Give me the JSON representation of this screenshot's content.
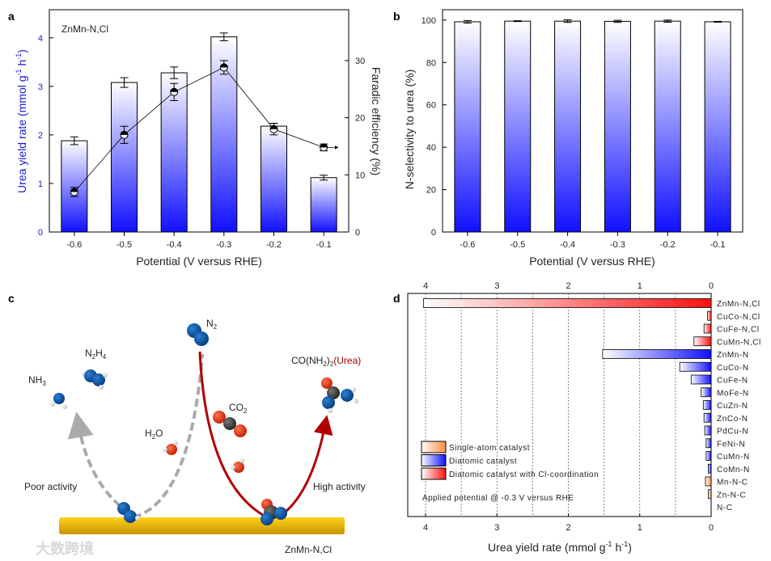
{
  "panel_labels": {
    "a": "a",
    "b": "b",
    "c": "c",
    "d": "d"
  },
  "colors": {
    "blue": "#1010ff",
    "red": "#ff1010",
    "orange": "#ff8a40",
    "axis_left": "#1a1ad0",
    "arrow_red": "#b00000",
    "arrow_grey": "#aaaaaa",
    "substrate": "#e6b800"
  },
  "chart_data": [
    {
      "type": "bar",
      "panel": "a",
      "annotation": "ZnMn-N,Cl",
      "categories": [
        "-0.6",
        "-0.5",
        "-0.4",
        "-0.3",
        "-0.2",
        "-0.1"
      ],
      "xlabel": "Potential (V versus RHE)",
      "ylabel": "Urea yield rate (mmol g-1 h-1)",
      "ylabel_parts": {
        "main": "Urea yield rate ",
        "paren": "(mmol g",
        "sup1": "-1",
        "h": " h",
        "sup2": "-1",
        "close": ")"
      },
      "y2label": "Faradic efficiency (%)",
      "ylim": [
        0,
        4.58
      ],
      "yticks": [
        0,
        1,
        2,
        3,
        4
      ],
      "y2lim": [
        0,
        38.9
      ],
      "y2ticks": [
        0,
        10,
        20,
        30
      ],
      "series": [
        {
          "name": "Urea yield rate",
          "type": "bar",
          "axis": "left",
          "values": [
            1.88,
            3.08,
            3.28,
            4.02,
            2.18,
            1.12
          ],
          "errors": [
            0.08,
            0.1,
            0.12,
            0.08,
            0.06,
            0.05
          ]
        },
        {
          "name": "Faradic efficiency",
          "type": "line",
          "axis": "right",
          "values": [
            7.0,
            17.0,
            24.5,
            28.8,
            18.0,
            14.8
          ],
          "errors": [
            0.8,
            1.5,
            1.5,
            1.2,
            1.0,
            0.6
          ]
        }
      ]
    },
    {
      "type": "bar",
      "panel": "b",
      "categories": [
        "-0.6",
        "-0.5",
        "-0.4",
        "-0.3",
        "-0.2",
        "-0.1"
      ],
      "xlabel": "Potential (V versus RHE)",
      "ylabel": "N-selectivity to urea (%)",
      "ylim": [
        0,
        104.9
      ],
      "yticks": [
        0,
        20,
        40,
        60,
        80,
        100
      ],
      "values": [
        99.2,
        99.5,
        99.5,
        99.4,
        99.5,
        99.2
      ],
      "errors": [
        0.6,
        0.2,
        0.6,
        0.5,
        0.5,
        0.2
      ]
    },
    {
      "type": "bar",
      "orientation": "horizontal",
      "panel": "d",
      "xlabel": "Urea yield rate (mmol g-1 h-1)",
      "xlabel_parts": {
        "main": "Urea yield rate (mmol g",
        "sup1": "-1",
        "h": " h",
        "sup2": "-1",
        "close": ")"
      },
      "xlim": [
        4.25,
        0
      ],
      "xticks": [
        4,
        3,
        2,
        1,
        0
      ],
      "grid": "dotted vertical every 0.5",
      "categories": [
        "ZnMn-N,Cl",
        "CuCo-N,Cl",
        "CuFe-N,Cl",
        "CuMn-N,Cl",
        "ZnMn-N",
        "CuCo-N",
        "CuFe-N",
        "MoFe-N",
        "CuZn-N",
        "ZnCo-N",
        "PdCu-N",
        "FeNi-N",
        "CuMn-N",
        "CoMn-N",
        "Mn-N-C",
        "Zn-N-C",
        "N-C"
      ],
      "values": [
        4.03,
        0.05,
        0.1,
        0.24,
        1.52,
        0.44,
        0.28,
        0.14,
        0.11,
        0.1,
        0.09,
        0.07,
        0.07,
        0.04,
        0.08,
        0.04,
        0
      ],
      "groups": [
        "cl",
        "cl",
        "cl",
        "cl",
        "dia",
        "dia",
        "dia",
        "dia",
        "dia",
        "dia",
        "dia",
        "dia",
        "dia",
        "dia",
        "single",
        "single",
        "single"
      ],
      "legend": [
        {
          "key": "single",
          "label": "Single-atom catalyst"
        },
        {
          "key": "dia",
          "label": "Diatomic catalyst"
        },
        {
          "key": "cl",
          "label": "Diatomic catalyst with Cl-coordination"
        }
      ],
      "legend_position": "bottom-left",
      "annotation": "Applied potential @ -0.3 V versus RHE"
    }
  ],
  "diagram_c": {
    "n2": "N",
    "n2_sub": "2",
    "n2h4": {
      "a": "N",
      "b": "2",
      "c": "H",
      "d": "4"
    },
    "nh3": {
      "a": "NH",
      "b": "3"
    },
    "h2o": {
      "a": "H",
      "b": "2",
      "c": "O"
    },
    "co2": {
      "a": "CO",
      "b": "2"
    },
    "urea": {
      "a": "CO(NH",
      "b": "2",
      "c": ")",
      "d": "2",
      "e": "(Urea)"
    },
    "poor": "Poor activity",
    "high": "High activity",
    "catalyst": "ZnMn-N,Cl"
  },
  "watermark": "大数跨境"
}
